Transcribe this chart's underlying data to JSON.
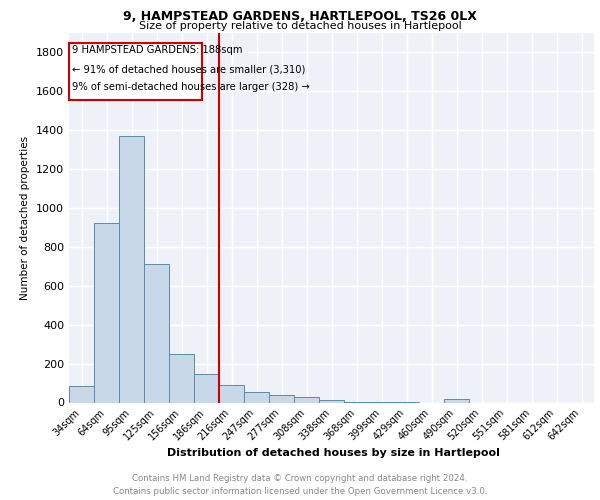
{
  "title1": "9, HAMPSTEAD GARDENS, HARTLEPOOL, TS26 0LX",
  "title2": "Size of property relative to detached houses in Hartlepool",
  "xlabel": "Distribution of detached houses by size in Hartlepool",
  "ylabel": "Number of detached properties",
  "footer": "Contains HM Land Registry data © Crown copyright and database right 2024.\nContains public sector information licensed under the Open Government Licence v3.0.",
  "categories": [
    "34sqm",
    "64sqm",
    "95sqm",
    "125sqm",
    "156sqm",
    "186sqm",
    "216sqm",
    "247sqm",
    "277sqm",
    "308sqm",
    "338sqm",
    "368sqm",
    "399sqm",
    "429sqm",
    "460sqm",
    "490sqm",
    "520sqm",
    "551sqm",
    "581sqm",
    "612sqm",
    "642sqm"
  ],
  "values": [
    85,
    920,
    1370,
    710,
    248,
    148,
    88,
    55,
    38,
    30,
    15,
    5,
    2,
    1,
    0,
    18,
    0,
    0,
    0,
    0,
    0
  ],
  "bar_color": "#c8d8e8",
  "bar_edge_color": "#5a8ab0",
  "vline_x": 5.5,
  "vline_color": "#cc0000",
  "box_text_line1": "9 HAMPSTEAD GARDENS: 188sqm",
  "box_text_line2": "← 91% of detached houses are smaller (3,310)",
  "box_text_line3": "9% of semi-detached houses are larger (328) →",
  "ylim": [
    0,
    1900
  ],
  "yticks": [
    0,
    200,
    400,
    600,
    800,
    1000,
    1200,
    1400,
    1600,
    1800
  ],
  "bg_color": "#eef2f8"
}
